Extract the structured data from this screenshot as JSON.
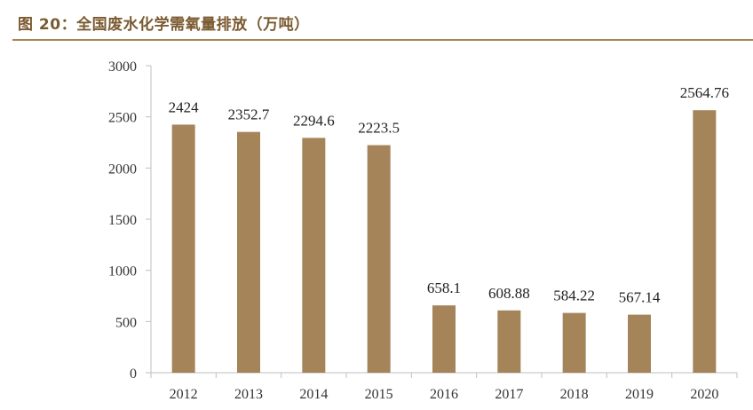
{
  "figure": {
    "title": "图 20：全国废水化学需氧量排放（万吨）"
  },
  "chart_data": {
    "type": "bar",
    "title": "全国废水化学需氧量排放（万吨）",
    "categories": [
      "2012",
      "2013",
      "2014",
      "2015",
      "2016",
      "2017",
      "2018",
      "2019",
      "2020"
    ],
    "values": [
      2424,
      2352.7,
      2294.6,
      2223.5,
      658.1,
      608.88,
      584.22,
      567.14,
      2564.76
    ],
    "data_labels": [
      "2424",
      "2352.7",
      "2294.6",
      "2223.5",
      "658.1",
      "608.88",
      "584.22",
      "567.14",
      "2564.76"
    ],
    "ylim": [
      0,
      3000
    ],
    "yticks": [
      0,
      500,
      1000,
      1500,
      2000,
      2500,
      3000
    ],
    "xlabel": "",
    "ylabel": "",
    "grid": false,
    "legend": "none",
    "bar_color": "#a5845a",
    "axis_color": "#bfbfbf"
  }
}
